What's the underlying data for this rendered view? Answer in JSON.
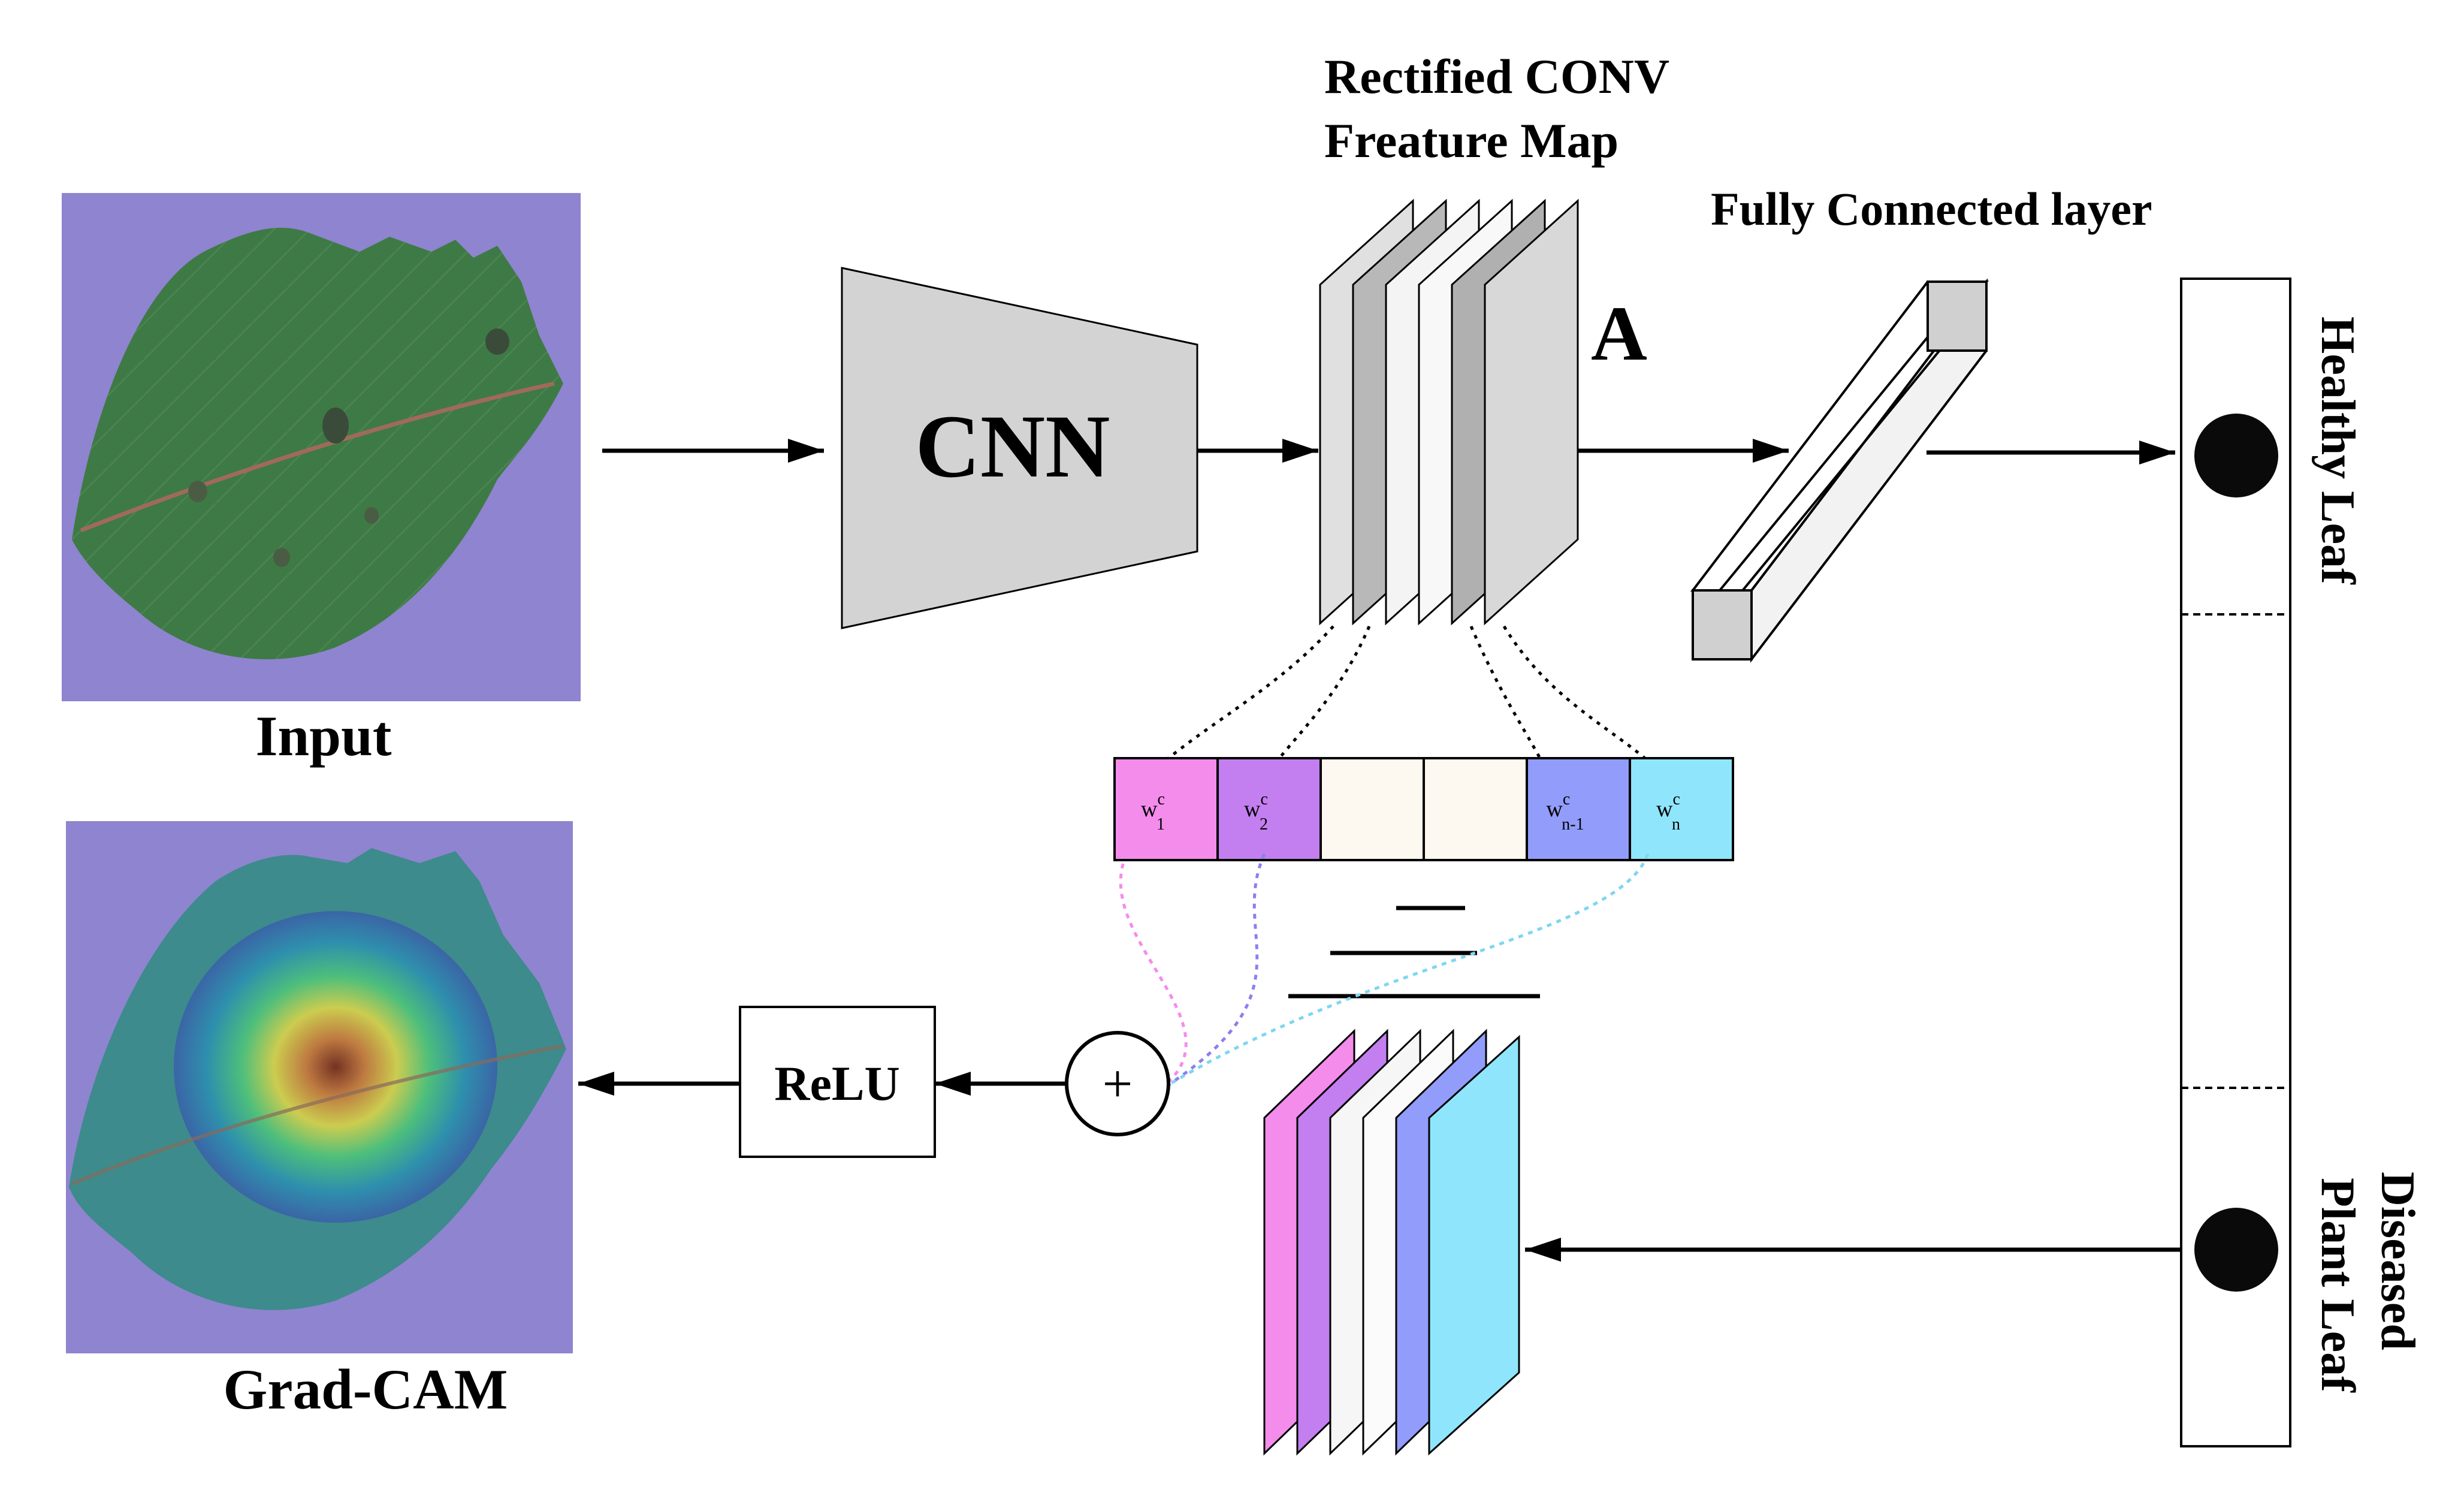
{
  "labels": {
    "input": "Input",
    "gradcam": "Grad-CAM",
    "cnn": "CNN",
    "feature_map_line1": "Rectified CONV",
    "feature_map_line2": "Freature Map",
    "feature_map_symbol": "A",
    "fully_connected": "Fully Connected layer",
    "relu": "ReLU",
    "sum_symbol": "+",
    "class_healthy": "Healthy Leaf",
    "class_diseased_line1": "Diseased",
    "class_diseased_line2": "Plant Leaf"
  },
  "weights": [
    {
      "base": "w",
      "sup": "c",
      "sub": "1",
      "color": "#f48cec"
    },
    {
      "base": "w",
      "sup": "c",
      "sub": "2",
      "color": "#c37ff0"
    },
    {
      "base": "",
      "sup": "",
      "sub": "",
      "color": "#fdf8f0"
    },
    {
      "base": "",
      "sup": "",
      "sub": "",
      "color": "#fdf8f0"
    },
    {
      "base": "w",
      "sup": "c",
      "sub": "n-1",
      "color": "#929cfa"
    },
    {
      "base": "w",
      "sup": "c",
      "sub": "n",
      "color": "#8fe6fc"
    }
  ],
  "colors": {
    "cnn_fill": "#d3d3d3",
    "feature_gray": "#c8c8c8",
    "feature_light": "#f4f4f4",
    "background_purple": "#8f84cf",
    "leaf_green": "#3e7a45"
  }
}
